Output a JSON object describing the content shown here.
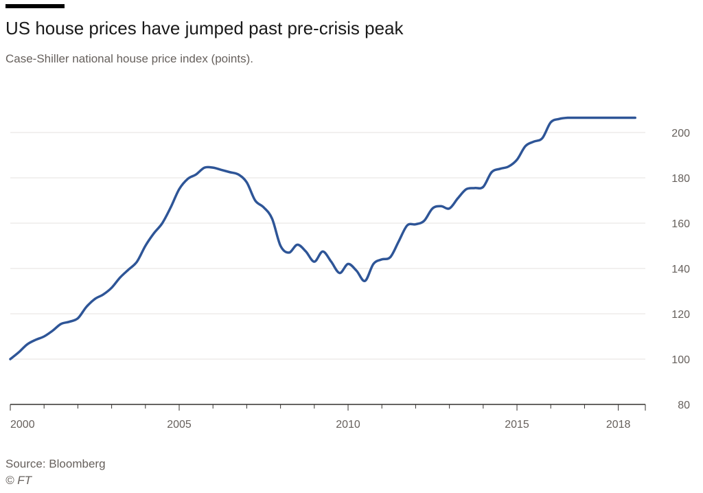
{
  "header": {
    "title": "US house prices have jumped past pre-crisis peak",
    "subtitle": "Case-Shiller national house price index (points)."
  },
  "footer": {
    "source": "Source: Bloomberg",
    "credit": "© FT"
  },
  "colors": {
    "line": "#2e5597",
    "grid": "#e6e2df",
    "axis": "#33302e",
    "text": "#66605c"
  },
  "chart_data": {
    "type": "line",
    "title": "US house prices have jumped past pre-crisis peak",
    "subtitle": "Case-Shiller national house price index (points).",
    "xlabel": "",
    "ylabel": "",
    "xlim": [
      2000,
      2018.8
    ],
    "ylim": [
      80,
      210
    ],
    "y_axis_position": "right",
    "x_ticks": [
      2000,
      2005,
      2010,
      2015,
      2018
    ],
    "y_ticks": [
      80,
      100,
      120,
      140,
      160,
      180,
      200
    ],
    "grid": true,
    "legend": "none",
    "series": [
      {
        "x": [
          2000.0,
          2000.25,
          2000.5,
          2000.75,
          2001.0,
          2001.25,
          2001.5,
          2001.75,
          2002.0,
          2002.25,
          2002.5,
          2002.75,
          2003.0,
          2003.25,
          2003.5,
          2003.75,
          2004.0,
          2004.25,
          2004.5,
          2004.75,
          2005.0,
          2005.25,
          2005.5,
          2005.75,
          2006.0,
          2006.25,
          2006.5,
          2006.75,
          2007.0,
          2007.25,
          2007.5,
          2007.75,
          2008.0,
          2008.25,
          2008.5,
          2008.75,
          2009.0,
          2009.25,
          2009.5,
          2009.75,
          2010.0,
          2010.25,
          2010.5,
          2010.75,
          2011.0,
          2011.25,
          2011.5,
          2011.75,
          2012.0,
          2012.25,
          2012.5,
          2012.75,
          2013.0,
          2013.25,
          2013.5,
          2013.75,
          2014.0,
          2014.25,
          2014.5,
          2014.75,
          2015.0,
          2015.25,
          2015.5,
          2015.75,
          2016.0,
          2016.25,
          2016.5,
          2016.75,
          2017.0,
          2017.25,
          2017.5,
          2017.75,
          2018.0,
          2018.25,
          2018.5
        ],
        "values": [
          100.0,
          103.0,
          106.5,
          108.5,
          110.0,
          112.5,
          115.5,
          116.5,
          118.0,
          123.0,
          126.5,
          128.5,
          131.5,
          136.0,
          139.5,
          143.0,
          150.0,
          155.5,
          160.0,
          167.0,
          175.0,
          179.5,
          181.5,
          184.5,
          184.5,
          183.5,
          182.5,
          181.5,
          178.0,
          170.0,
          167.0,
          162.0,
          150.0,
          147.0,
          150.5,
          147.5,
          143.0,
          147.5,
          143.0,
          138.0,
          142.0,
          139.0,
          134.5,
          142.0,
          144.0,
          145.0,
          152.0,
          159.0,
          159.5,
          161.0,
          166.5,
          167.5,
          166.5,
          171.0,
          175.0,
          175.5,
          176.0,
          182.5,
          184.0,
          185.0,
          188.0,
          194.0,
          196.0,
          197.5,
          204.5,
          206.0,
          206.5,
          206.5,
          206.5,
          206.5,
          206.5,
          206.5,
          206.5,
          206.5,
          206.5
        ]
      }
    ]
  }
}
